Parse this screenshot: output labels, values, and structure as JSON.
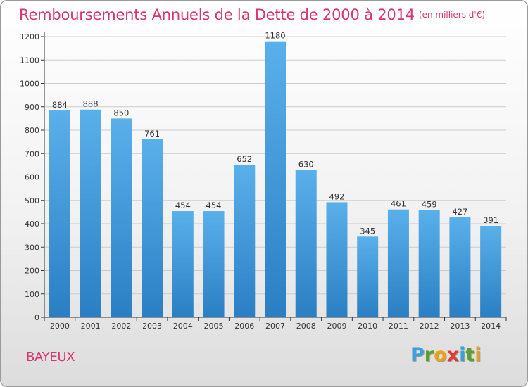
{
  "title": "Remboursements Annuels de la Dette de 2000 à 2014",
  "subtitle": "(en milliers d'€)",
  "city": "BAYEUX",
  "logo": {
    "letters": [
      "P",
      "r",
      "o",
      "x",
      "i",
      "t",
      "i"
    ],
    "colors": [
      "#3aa0de",
      "#5a9f2a",
      "#e8a317",
      "#e23b2e",
      "#3aa0de",
      "#5a9f2a",
      "#e8a317"
    ]
  },
  "colors": {
    "title": "#d5366f",
    "bar_top": "#5ab0ea",
    "bar_bottom": "#2a7fc4",
    "axis": "#333333",
    "grid": "#cccccc"
  },
  "chart_data": {
    "type": "bar",
    "categories": [
      "2000",
      "2001",
      "2002",
      "2003",
      "2004",
      "2005",
      "2006",
      "2007",
      "2008",
      "2009",
      "2010",
      "2011",
      "2012",
      "2013",
      "2014"
    ],
    "values": [
      884,
      888,
      850,
      761,
      454,
      454,
      652,
      1180,
      630,
      492,
      345,
      461,
      459,
      427,
      391
    ],
    "yticks": [
      0,
      100,
      200,
      300,
      400,
      500,
      600,
      700,
      800,
      900,
      1000,
      1100,
      1200
    ],
    "ylim": [
      0,
      1200
    ],
    "grid": true
  }
}
